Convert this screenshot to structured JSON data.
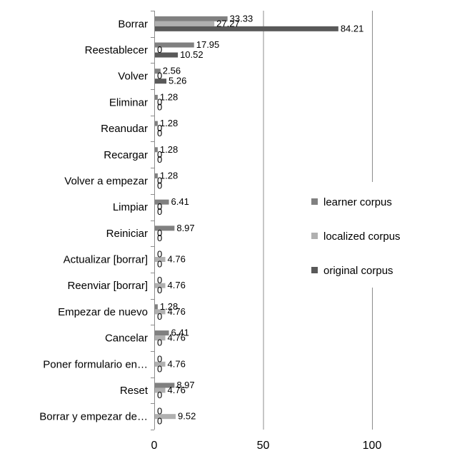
{
  "chart_data": {
    "type": "bar",
    "orientation": "horizontal",
    "categories": [
      "Borrar",
      "Reestablecer",
      "Volver",
      "Eliminar",
      "Reanudar",
      "Recargar",
      "Volver a empezar",
      "Limpiar",
      "Reiniciar",
      "Actualizar [borrar]",
      "Reenviar [borrar]",
      "Empezar de nuevo",
      "Cancelar",
      "Poner formulario en…",
      "Reset",
      "Borrar y empezar de…"
    ],
    "series": [
      {
        "name": "learner corpus",
        "color": "#808080",
        "values": [
          33.33,
          17.95,
          2.56,
          1.28,
          1.28,
          1.28,
          1.28,
          6.41,
          8.97,
          0,
          0,
          1.28,
          6.41,
          0,
          8.97,
          0
        ]
      },
      {
        "name": "localized corpus",
        "color": "#b0b0b0",
        "values": [
          27.27,
          0,
          0,
          0,
          0,
          0,
          0,
          0,
          0,
          4.76,
          4.76,
          4.76,
          4.76,
          4.76,
          4.76,
          9.52
        ]
      },
      {
        "name": "original corpus",
        "color": "#595959",
        "values": [
          84.21,
          10.52,
          5.26,
          0,
          0,
          0,
          0,
          0,
          0,
          0,
          0,
          0,
          0,
          0,
          0,
          0
        ]
      }
    ],
    "value_labels": [
      [
        "33.33",
        "27.27",
        "84.21"
      ],
      [
        "17.95",
        "0",
        "10.52"
      ],
      [
        "2.56",
        "0",
        "5.26"
      ],
      [
        "1.28",
        "0",
        "0"
      ],
      [
        "1.28",
        "0",
        "0"
      ],
      [
        "1.28",
        "0",
        "0"
      ],
      [
        "1.28",
        "0",
        "0"
      ],
      [
        "6.41",
        "0",
        "0"
      ],
      [
        "8.97",
        "0",
        "0"
      ],
      [
        "0",
        "4.76",
        "0"
      ],
      [
        "0",
        "4.76",
        "0"
      ],
      [
        "1.28",
        "4.76",
        "0"
      ],
      [
        "6.41",
        "4.76",
        "0"
      ],
      [
        "0",
        "4.76",
        "0"
      ],
      [
        "8.97",
        "4.76",
        "0"
      ],
      [
        "0",
        "9.52",
        "0"
      ]
    ],
    "xlim": [
      0,
      100
    ],
    "xticks": [
      "0",
      "50",
      "100"
    ],
    "grid": "vertical",
    "legend_position": "right"
  }
}
